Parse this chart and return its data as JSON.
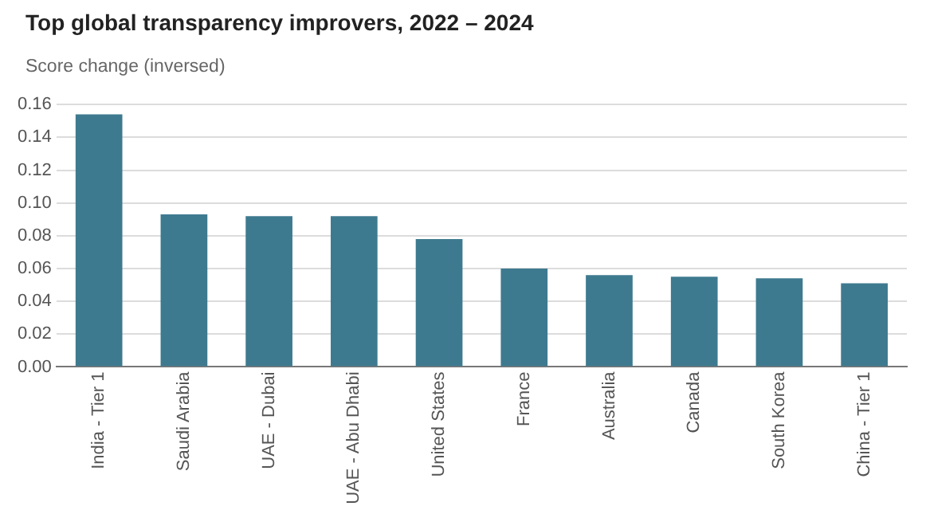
{
  "chart_data": {
    "type": "bar",
    "title": "Top global transparency improvers, 2022 – 2024",
    "ylabel": "Score change (inversed)",
    "categories": [
      "India - Tier 1",
      "Saudi Arabia",
      "UAE - Dubai",
      "UAE - Abu Dhabi",
      "United States",
      "France",
      "Australia",
      "Canada",
      "South Korea",
      "China - Tier 1"
    ],
    "values": [
      0.154,
      0.093,
      0.092,
      0.092,
      0.078,
      0.06,
      0.056,
      0.055,
      0.054,
      0.051
    ],
    "color": "#3e7a8f",
    "ylim": [
      0,
      0.16
    ],
    "yticks": [
      {
        "value": 0,
        "label": "0.00"
      },
      {
        "value": 0.02,
        "label": "0.02"
      },
      {
        "value": 0.04,
        "label": "0.04"
      },
      {
        "value": 0.06,
        "label": "0.06"
      },
      {
        "value": 0.08,
        "label": "0.08"
      },
      {
        "value": 0.1,
        "label": "0.10"
      },
      {
        "value": 0.12,
        "label": "0.12"
      },
      {
        "value": 0.14,
        "label": "0.14"
      },
      {
        "value": 0.16,
        "label": "0.16"
      }
    ],
    "grid": "y"
  }
}
